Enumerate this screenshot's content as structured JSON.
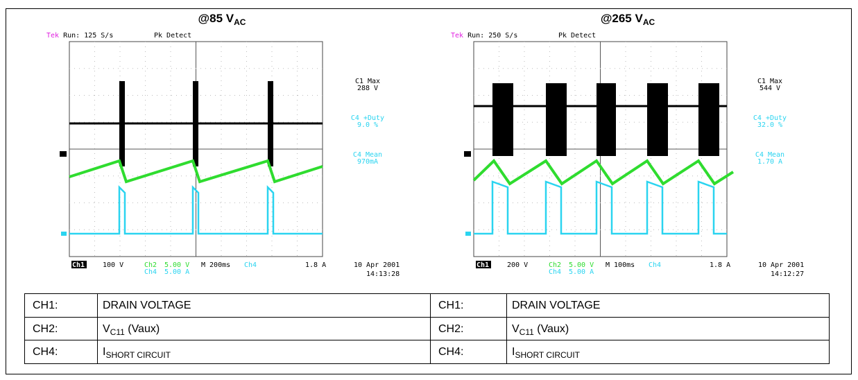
{
  "panels": [
    {
      "title": {
        "main": "@85 V",
        "sub": "AC"
      },
      "scope": {
        "brand": "Tek",
        "status": "Run: 125 S/s",
        "mode": "Pk Detect",
        "readouts": [
          {
            "label": "C1 Max",
            "value": "288 V"
          },
          {
            "label": "C4 +Duty",
            "value": "9.0 %"
          },
          {
            "label": "C4 Mean",
            "value": "970mA"
          }
        ],
        "footer": {
          "ch1": "Ch1",
          "ch1_scale": "100 V",
          "ch2": "Ch2",
          "ch2_scale": "5.00 V",
          "timebase": "M 200ms",
          "trig_ch": "Ch4",
          "trig_level": "1.8 A",
          "ch4": "Ch4",
          "ch4_scale": "5.00 A"
        },
        "date": "10 Apr 2001",
        "time": "14:13:28"
      }
    },
    {
      "title": {
        "main": "@265 V",
        "sub": "AC"
      },
      "scope": {
        "brand": "Tek",
        "status": "Run: 250 S/s",
        "mode": "Pk Detect",
        "readouts": [
          {
            "label": "C1 Max",
            "value": "544 V"
          },
          {
            "label": "C4 +Duty",
            "value": "32.0 %"
          },
          {
            "label": "C4 Mean",
            "value": "1.70 A"
          }
        ],
        "footer": {
          "ch1": "Ch1",
          "ch1_scale": "200 V",
          "ch2": "Ch2",
          "ch2_scale": "5.00 V",
          "timebase": "M 100ms",
          "trig_ch": "Ch4",
          "trig_level": "1.8 A",
          "ch4": "Ch4",
          "ch4_scale": "5.00 A"
        },
        "date": "10 Apr 2001",
        "time": "14:12:27"
      }
    }
  ],
  "table": {
    "rows": [
      [
        {
          "text": "CH1:"
        },
        {
          "text": "DRAIN VOLTAGE"
        },
        {
          "text": "CH1:"
        },
        {
          "text": "DRAIN VOLTAGE"
        }
      ],
      [
        {
          "text": "CH2:"
        },
        {
          "text": "V",
          "sub": "C11",
          "after": " (Vaux)"
        },
        {
          "text": "CH2:"
        },
        {
          "text": "V",
          "sub": "C11",
          "after": " (Vaux)"
        }
      ],
      [
        {
          "text": "CH4:"
        },
        {
          "text": "I",
          "sub": "SHORT CIRCUIT"
        },
        {
          "text": "CH4:"
        },
        {
          "text": "I",
          "sub": "SHORT CIRCUIT"
        }
      ]
    ]
  }
}
